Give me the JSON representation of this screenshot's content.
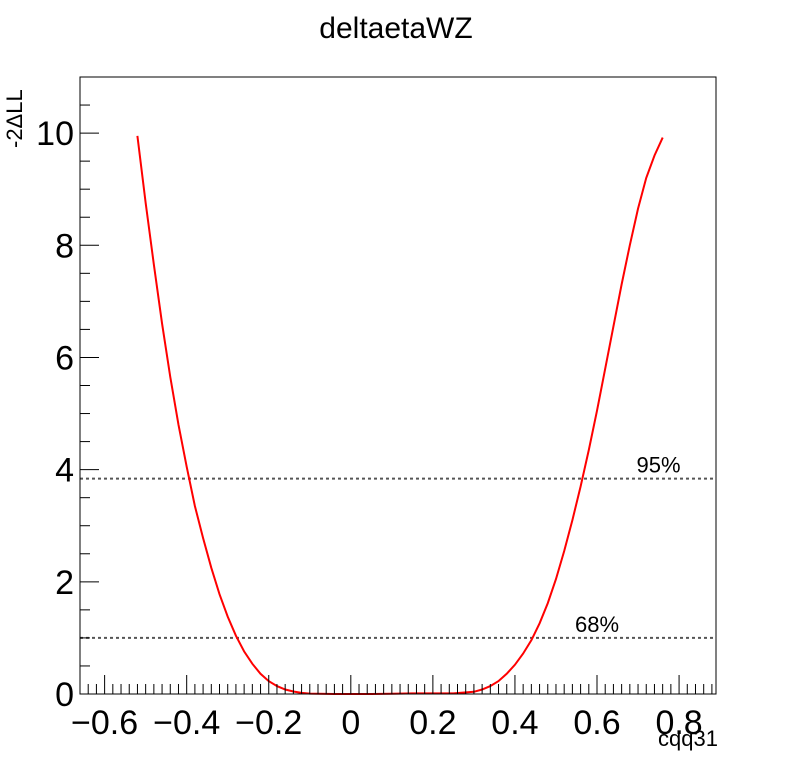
{
  "chart_data": {
    "type": "line",
    "title": "deltaetaWZ",
    "xlabel": "cqq31",
    "ylabel": "-2ΔLL",
    "xlim": [
      -0.66,
      0.89
    ],
    "ylim": [
      0,
      11
    ],
    "x_major_ticks": [
      -0.6,
      -0.4,
      -0.2,
      0,
      0.2,
      0.4,
      0.6,
      0.8
    ],
    "x_tick_labels": [
      "−0.6",
      "−0.4",
      "−0.2",
      "0",
      "0.2",
      "0.4",
      "0.6",
      "0.8"
    ],
    "y_major_ticks": [
      0,
      2,
      4,
      6,
      8,
      10
    ],
    "y_tick_labels": [
      "0",
      "2",
      "4",
      "6",
      "8",
      "10"
    ],
    "grid": false,
    "legend": "none",
    "series": [
      {
        "color": "#ff0000",
        "x": [
          -0.52,
          -0.5,
          -0.48,
          -0.46,
          -0.44,
          -0.42,
          -0.4,
          -0.38,
          -0.36,
          -0.34,
          -0.32,
          -0.3,
          -0.28,
          -0.26,
          -0.24,
          -0.22,
          -0.2,
          -0.18,
          -0.16,
          -0.14,
          -0.12,
          -0.1,
          -0.08,
          -0.06,
          -0.04,
          -0.02,
          0,
          0.05,
          0.1,
          0.15,
          0.2,
          0.25,
          0.3,
          0.32,
          0.34,
          0.36,
          0.38,
          0.4,
          0.42,
          0.44,
          0.46,
          0.48,
          0.5,
          0.52,
          0.54,
          0.56,
          0.58,
          0.6,
          0.62,
          0.64,
          0.66,
          0.68,
          0.7,
          0.72,
          0.74,
          0.76
        ],
        "y": [
          9.95,
          8.75,
          7.65,
          6.6,
          5.65,
          4.8,
          4.05,
          3.35,
          2.78,
          2.25,
          1.78,
          1.38,
          1.04,
          0.76,
          0.54,
          0.36,
          0.23,
          0.14,
          0.08,
          0.045,
          0.02,
          0.008,
          0.003,
          0.001,
          0.0,
          0.0,
          0.0,
          0.0,
          0.005,
          0.01,
          0.01,
          0.01,
          0.04,
          0.08,
          0.14,
          0.23,
          0.36,
          0.52,
          0.72,
          0.96,
          1.26,
          1.62,
          2.05,
          2.55,
          3.1,
          3.7,
          4.35,
          5.05,
          5.8,
          6.55,
          7.3,
          8.0,
          8.65,
          9.2,
          9.6,
          9.92
        ]
      }
    ],
    "reference_lines": [
      {
        "y": 3.84,
        "label": "95%",
        "label_x": 0.75,
        "color": "#555555"
      },
      {
        "y": 1.0,
        "label": "68%",
        "label_x": 0.6,
        "color": "#555555"
      }
    ]
  }
}
